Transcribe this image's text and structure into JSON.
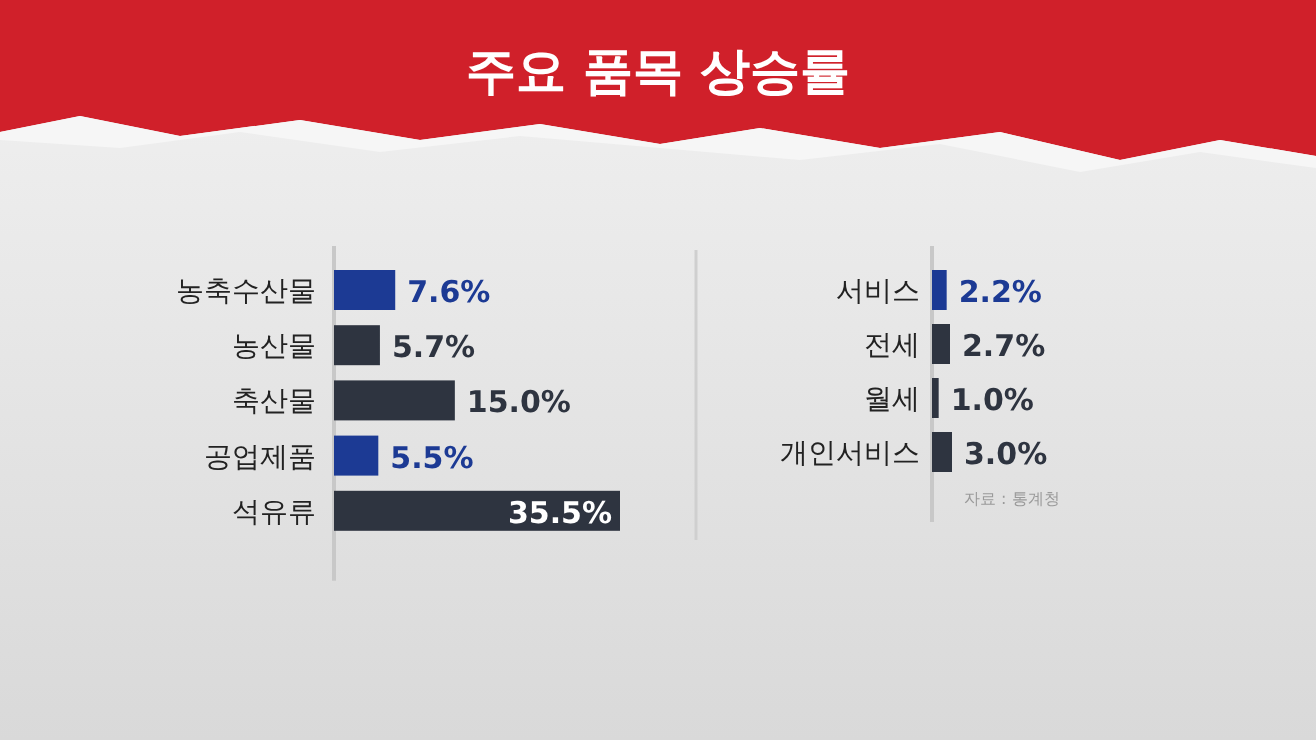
{
  "chart_data": [
    {
      "type": "bar",
      "orientation": "horizontal",
      "title": "주요 품목 상승률",
      "categories": [
        "농축수산물",
        "농산물",
        "축산물",
        "공업제품",
        "석유류"
      ],
      "values": [
        7.6,
        5.7,
        15.0,
        5.5,
        35.5
      ],
      "colors": [
        "#1c3a94",
        "#2e3440",
        "#2e3440",
        "#1c3a94",
        "#2e3440"
      ],
      "value_labels": [
        "7.6%",
        "5.7%",
        "15.0%",
        "5.5%",
        "35.5%"
      ]
    },
    {
      "type": "bar",
      "orientation": "horizontal",
      "categories": [
        "서비스",
        "전세",
        "월세",
        "개인서비스"
      ],
      "values": [
        2.2,
        2.7,
        1.0,
        3.0
      ],
      "colors": [
        "#1c3a94",
        "#2e3440",
        "#2e3440",
        "#2e3440"
      ],
      "value_labels": [
        "2.2%",
        "2.7%",
        "1.0%",
        "3.0%"
      ],
      "annotations": [
        "자료 : 통계청"
      ]
    }
  ]
}
